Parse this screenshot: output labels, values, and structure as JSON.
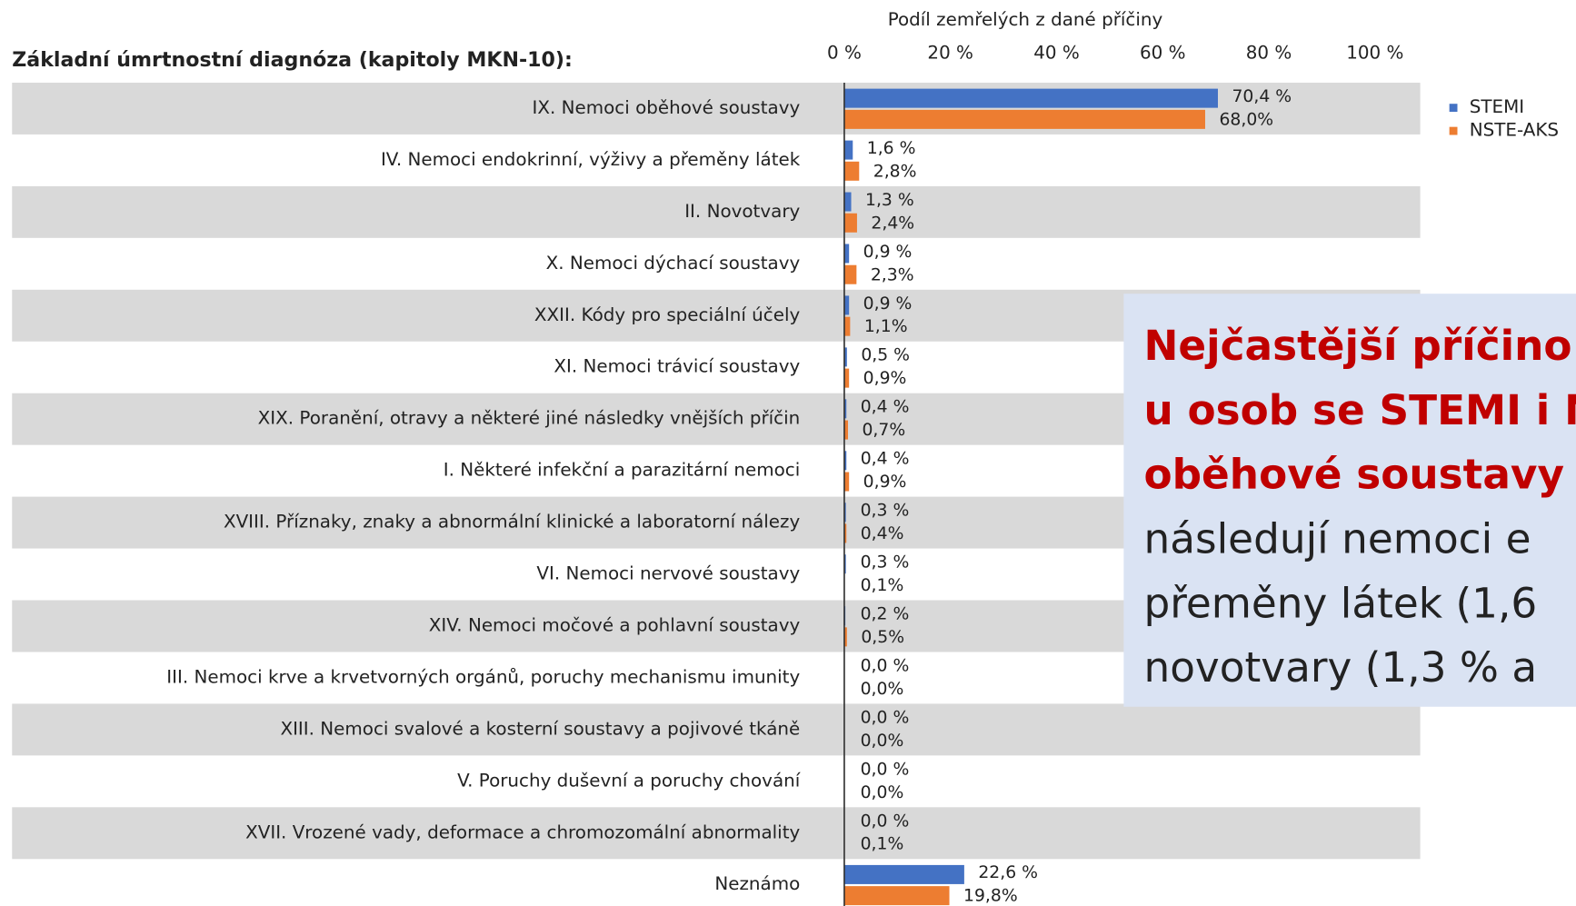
{
  "chart_data": {
    "type": "bar",
    "orientation": "horizontal",
    "title": "Základní úmrtnostní diagnóza (kapitoly MKN-10):",
    "x_label": "Podíl zemřelých z dané příčiny",
    "categories": [
      "IX. Nemoci oběhové soustavy",
      "IV. Nemoci endokrinní, výživy a přeměny látek",
      "II. Novotvary",
      "X. Nemoci dýchací soustavy",
      "XXII. Kódy pro speciální účely",
      "XI. Nemoci trávicí soustavy",
      "XIX. Poranění, otravy a některé jiné následky vnějších příčin",
      "I. Některé infekční a parazitární nemoci",
      "XVIII. Příznaky, znaky a abnormální klinické a laboratorní nálezy",
      "VI. Nemoci nervové soustavy",
      "XIV. Nemoci močové a pohlavní soustavy",
      "III. Nemoci krve a krvetvorných orgánů, poruchy mechanismu imunity",
      "XIII. Nemoci svalové a kosterní soustavy a pojivové tkáně",
      "V. Poruchy duševní a poruchy chování",
      "XVII. Vrozené vady, deformace a chromozomální abnormality",
      "Neznámo"
    ],
    "series": [
      {
        "name": "STEMI",
        "color": "#4472c4",
        "values": [
          70.4,
          1.6,
          1.3,
          0.9,
          0.9,
          0.5,
          0.4,
          0.4,
          0.3,
          0.3,
          0.2,
          0.0,
          0.0,
          0.0,
          0.0,
          22.6
        ],
        "value_labels": [
          "70,4 %",
          "1,6 %",
          "1,3 %",
          "0,9 %",
          "0,9 %",
          "0,5 %",
          "0,4 %",
          "0,4 %",
          "0,3 %",
          "0,3 %",
          "0,2 %",
          "0,0 %",
          "0,0 %",
          "0,0 %",
          "0,0 %",
          "22,6 %"
        ]
      },
      {
        "name": "NSTE-AKS",
        "color": "#ed7d31",
        "values": [
          68.0,
          2.8,
          2.4,
          2.3,
          1.1,
          0.9,
          0.7,
          0.9,
          0.4,
          0.1,
          0.5,
          0.0,
          0.0,
          0.0,
          0.1,
          19.8
        ],
        "value_labels": [
          "68,0%",
          "2,8%",
          "2,4%",
          "2,3%",
          "1,1%",
          "0,9%",
          "0,7%",
          "0,9%",
          "0,4%",
          "0,1%",
          "0,5%",
          "0,0%",
          "0,0%",
          "0,0%",
          "0,1%",
          "19,8%"
        ]
      }
    ],
    "xlim": [
      0,
      100
    ],
    "xticks": [
      {
        "value": 0,
        "label": "0 %"
      },
      {
        "value": 20,
        "label": "20 %"
      },
      {
        "value": 40,
        "label": "40 %"
      },
      {
        "value": 60,
        "label": "60 %"
      },
      {
        "value": 80,
        "label": "80 %"
      },
      {
        "value": 100,
        "label": "100 %"
      }
    ],
    "legend": "right",
    "annotation": {
      "lines": [
        {
          "text": "Nejčastější příčino",
          "bold": true
        },
        {
          "text": "u osob se STEMI i N",
          "bold": true
        },
        {
          "text": "oběhové soustavy",
          "bold": true
        },
        {
          "text": "následují nemoci e",
          "bold": false
        },
        {
          "text": "přeměny látek (1,6",
          "bold": false
        },
        {
          "text": "novotvary (1,3 % a",
          "bold": false
        }
      ]
    }
  }
}
